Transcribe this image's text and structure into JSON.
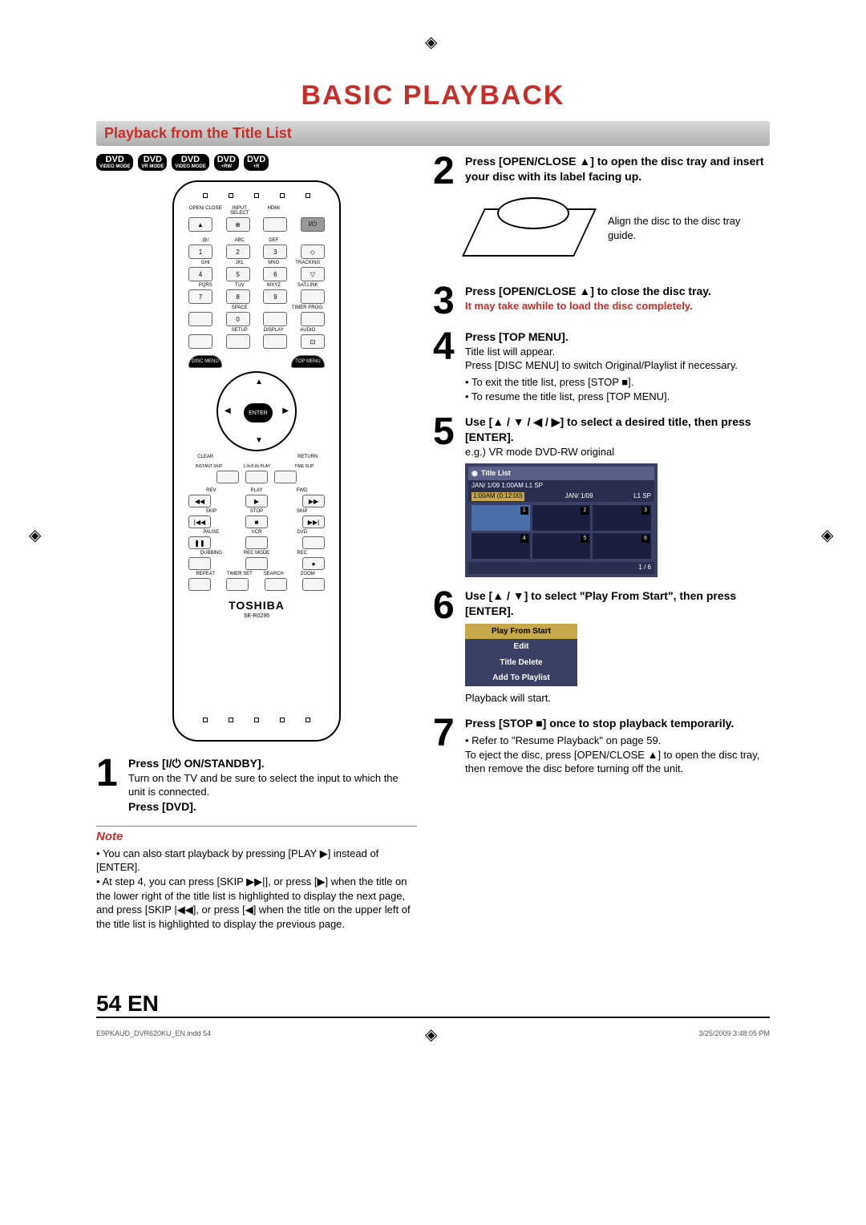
{
  "page": {
    "title": "BASIC PLAYBACK",
    "section": "Playback from the Title List",
    "pageNum": "54",
    "lang": "EN",
    "footer_left": "E9PKAUD_DVR620KU_EN.indd   54",
    "footer_right": "3/25/2009   3:48:05 PM",
    "title_color": "#c72e2a"
  },
  "badges": [
    {
      "top": "DVD",
      "bot": "VIDEO MODE"
    },
    {
      "top": "DVD",
      "bot": "VR MODE"
    },
    {
      "top": "DVD",
      "bot": "VIDEO MODE"
    },
    {
      "top": "DVD",
      "bot": "+RW"
    },
    {
      "top": "DVD",
      "bot": "+R"
    }
  ],
  "remote": {
    "row1": [
      "OPEN/\nCLOSE",
      "INPUT\nSELECT",
      "HDMI",
      ""
    ],
    "btns_top": [
      "▲",
      "⊕",
      "",
      "I/⏻"
    ],
    "numpad": [
      {
        "lbl": [
          ".@/:",
          "ABC",
          "DEF",
          ""
        ],
        "btn": [
          "1",
          "2",
          "3",
          "◇"
        ]
      },
      {
        "lbl": [
          "GHI",
          "JKL",
          "MNO",
          "TRACKING"
        ],
        "btn": [
          "4",
          "5",
          "6",
          "▽"
        ]
      },
      {
        "lbl": [
          "PQRS",
          "TUV",
          "WXYZ",
          "SAT.LINK"
        ],
        "btn": [
          "7",
          "8",
          "9",
          ""
        ]
      },
      {
        "lbl": [
          "",
          "SPACE",
          "",
          "TIMER\nPROG."
        ],
        "btn": [
          "",
          "0",
          "",
          ""
        ]
      },
      {
        "lbl": [
          "",
          "SETUP",
          "DISPLAY",
          "AUDIO"
        ],
        "btn": [
          "",
          "",
          "",
          "⊡"
        ]
      }
    ],
    "disc_menu": "DISC MENU",
    "top_menu": "TOP MENU",
    "enter": "ENTER",
    "clear": "CLEAR",
    "return": "RETURN",
    "mid_labels": [
      "INSTANT\nSKIP",
      "1.3x/0.8x\nPLAY",
      "TIME SLIP"
    ],
    "transport": [
      {
        "lbl": [
          "REV",
          "PLAY",
          "FWD"
        ],
        "btn": [
          "◀◀",
          "▶",
          "▶▶"
        ]
      },
      {
        "lbl": [
          "SKIP",
          "STOP",
          "SKIP"
        ],
        "btn": [
          "|◀◀",
          "■",
          "▶▶|"
        ]
      },
      {
        "lbl": [
          "PAUSE",
          "VCR",
          "DVD"
        ],
        "btn": [
          "❚❚",
          "",
          ""
        ]
      },
      {
        "lbl": [
          "DUBBING",
          "REC MODE",
          "REC"
        ],
        "btn": [
          "",
          "",
          "●"
        ]
      },
      {
        "lbl": [
          "REPEAT",
          "TIMER SET",
          "SEARCH",
          "ZOOM"
        ],
        "btn": [
          "",
          "",
          "",
          ""
        ]
      }
    ],
    "brand": "TOSHIBA",
    "model": "SE-R0295"
  },
  "steps_left": {
    "s1": {
      "num": "1",
      "line1": "Press [I/⏻ ON/STANDBY].",
      "line2": "Turn on the TV and be sure to select the input to which the unit is connected.",
      "line3": "Press [DVD]."
    }
  },
  "note": {
    "title": "Note",
    "items": [
      "You can also start playback by pressing [PLAY ▶] instead of [ENTER].",
      "At step 4, you can press [SKIP ▶▶|], or press [▶] when the title on the lower right of the title list is highlighted to display the next page, and press [SKIP |◀◀], or press [◀] when the title on the upper left of the title list is highlighted to display the previous page."
    ]
  },
  "steps_right": {
    "s2": {
      "num": "2",
      "line1": "Press [OPEN/CLOSE ▲] to open the disc tray and insert your disc with its label facing up.",
      "diagram_caption": "Align the disc to the disc tray guide."
    },
    "s3": {
      "num": "3",
      "line1": "Press [OPEN/CLOSE ▲] to close the disc tray.",
      "line2": "It may take awhile to load the disc completely."
    },
    "s4": {
      "num": "4",
      "line1": "Press [TOP MENU].",
      "line2": "Title list will appear.",
      "line3": "Press [DISC MENU] to switch Original/Playlist if necessary.",
      "bullets": [
        "To exit the title list, press [STOP ■].",
        "To resume the title list, press [TOP MENU]."
      ]
    },
    "s5": {
      "num": "5",
      "line1": "Use [▲ / ▼ / ◀ / ▶] to select a desired title, then press [ENTER].",
      "line2": "e.g.) VR mode DVD-RW original",
      "tl_header": "Title List",
      "tl_sub": "JAN/ 1/09 1:00AM  L1  SP",
      "tl_sub2_a": "1:00AM (0:12:00)",
      "tl_sub2_b": "JAN/   1/09",
      "tl_sub2_c": "L1  SP",
      "tl_cells": [
        "1",
        "2",
        "3",
        "4",
        "5",
        "6"
      ],
      "tl_footer": "1 / 6"
    },
    "s6": {
      "num": "6",
      "line1": "Use [▲ / ▼] to select \"Play From Start\", then press [ENTER].",
      "menu": [
        "Play From Start",
        "Edit",
        "Title Delete",
        "Add To Playlist"
      ],
      "line2": "Playback will start."
    },
    "s7": {
      "num": "7",
      "line1": "Press [STOP ■] once to stop playback temporarily.",
      "bullet": "Refer to \"Resume Playback\" on page 59.",
      "line2": "To eject the disc, press [OPEN/CLOSE ▲] to open the disc tray, then remove the disc before turning off the unit."
    }
  }
}
